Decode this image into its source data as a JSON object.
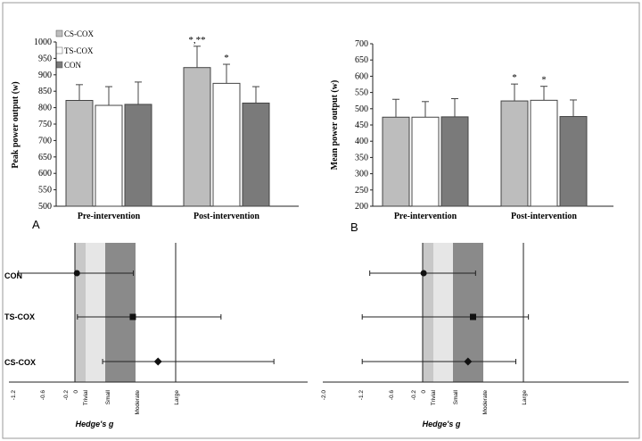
{
  "panels": {
    "A": {
      "letter": "A",
      "ylabel": "Peak power output (w)",
      "ylim": [
        500,
        1000
      ],
      "yticks": [
        500,
        550,
        600,
        650,
        700,
        750,
        800,
        850,
        900,
        950,
        1000
      ],
      "legend": [
        "CS-COX",
        "TS-COX",
        "CON"
      ]
    },
    "B": {
      "letter": "B",
      "ylabel": "Mean power output (w)",
      "ylim": [
        200,
        700
      ],
      "yticks": [
        200,
        250,
        300,
        350,
        400,
        450,
        500,
        550,
        600,
        650,
        700
      ]
    },
    "forest_left": {
      "xlabel": "Hedge's g",
      "ticks": [
        "-1.2",
        "-0.6",
        "-0.2",
        "0"
      ],
      "zones": [
        "Trivial",
        "Small",
        "Moderate",
        "Large"
      ],
      "rows": [
        "CON",
        "TS-COX",
        "CS-COX"
      ]
    },
    "forest_right": {
      "xlabel": "Hedge's g",
      "ticks": [
        "-2.0",
        "-1.2",
        "-0.6",
        "-0.2",
        "0"
      ],
      "zones": [
        "Trivial",
        "Small",
        "Moderate",
        "Large"
      ]
    }
  },
  "colors": {
    "cs_cox": "#bdbdbd",
    "ts_cox": "#ffffff",
    "con": "#7a7a7a",
    "trivial": "#c8c8c8",
    "small": "#e6e6e6",
    "moderate": "#8a8a8a"
  },
  "chart_data": [
    {
      "type": "bar",
      "panel": "A",
      "ylabel": "Peak power output (w)",
      "ylim": [
        500,
        1000
      ],
      "categories": [
        "Pre-intervention",
        "Post-intervention"
      ],
      "series": [
        {
          "name": "CS-COX",
          "values": [
            822,
            922
          ],
          "error": [
            48,
            65
          ],
          "annotations": [
            "",
            "*,**"
          ]
        },
        {
          "name": "TS-COX",
          "values": [
            807,
            874
          ],
          "error": [
            57,
            58
          ],
          "annotations": [
            "",
            "*"
          ]
        },
        {
          "name": "CON",
          "values": [
            810,
            814
          ],
          "error": [
            68,
            50
          ],
          "annotations": [
            "",
            ""
          ]
        }
      ]
    },
    {
      "type": "bar",
      "panel": "B",
      "ylabel": "Mean power output (w)",
      "ylim": [
        200,
        700
      ],
      "categories": [
        "Pre-intervention",
        "Post-intervention"
      ],
      "series": [
        {
          "name": "CS-COX",
          "values": [
            474,
            524
          ],
          "error": [
            55,
            52
          ],
          "annotations": [
            "",
            "*"
          ]
        },
        {
          "name": "TS-COX",
          "values": [
            474,
            526
          ],
          "error": [
            48,
            43
          ],
          "annotations": [
            "",
            "*"
          ]
        },
        {
          "name": "CON",
          "values": [
            475,
            476
          ],
          "error": [
            56,
            51
          ],
          "annotations": [
            "",
            ""
          ]
        }
      ]
    },
    {
      "type": "scatter",
      "panel": "forest-left",
      "xlabel": "Hedge's g",
      "rows": [
        {
          "name": "CON",
          "g": 0.04,
          "ci": [
            -1.12,
            1.16
          ],
          "marker": "circle"
        },
        {
          "name": "TS-COX",
          "g": 1.15,
          "ci": [
            0.05,
            2.9
          ],
          "marker": "square"
        },
        {
          "name": "CS-COX",
          "g": 1.65,
          "ci": [
            0.55,
            3.95
          ],
          "marker": "diamond"
        }
      ],
      "ref_lines": [
        0,
        0.2,
        0.6,
        1.2,
        2.0
      ]
    },
    {
      "type": "scatter",
      "panel": "forest-right",
      "xlabel": "Hedge's g",
      "rows": [
        {
          "name": "CON",
          "g": 0.02,
          "ci": [
            -1.05,
            1.05
          ],
          "marker": "circle"
        },
        {
          "name": "TS-COX",
          "g": 1.0,
          "ci": [
            -1.2,
            2.1
          ],
          "marker": "square"
        },
        {
          "name": "CS-COX",
          "g": 0.9,
          "ci": [
            -1.2,
            1.85
          ],
          "marker": "diamond"
        }
      ],
      "ref_lines": [
        0,
        0.2,
        0.6,
        1.2,
        2.0
      ]
    }
  ]
}
